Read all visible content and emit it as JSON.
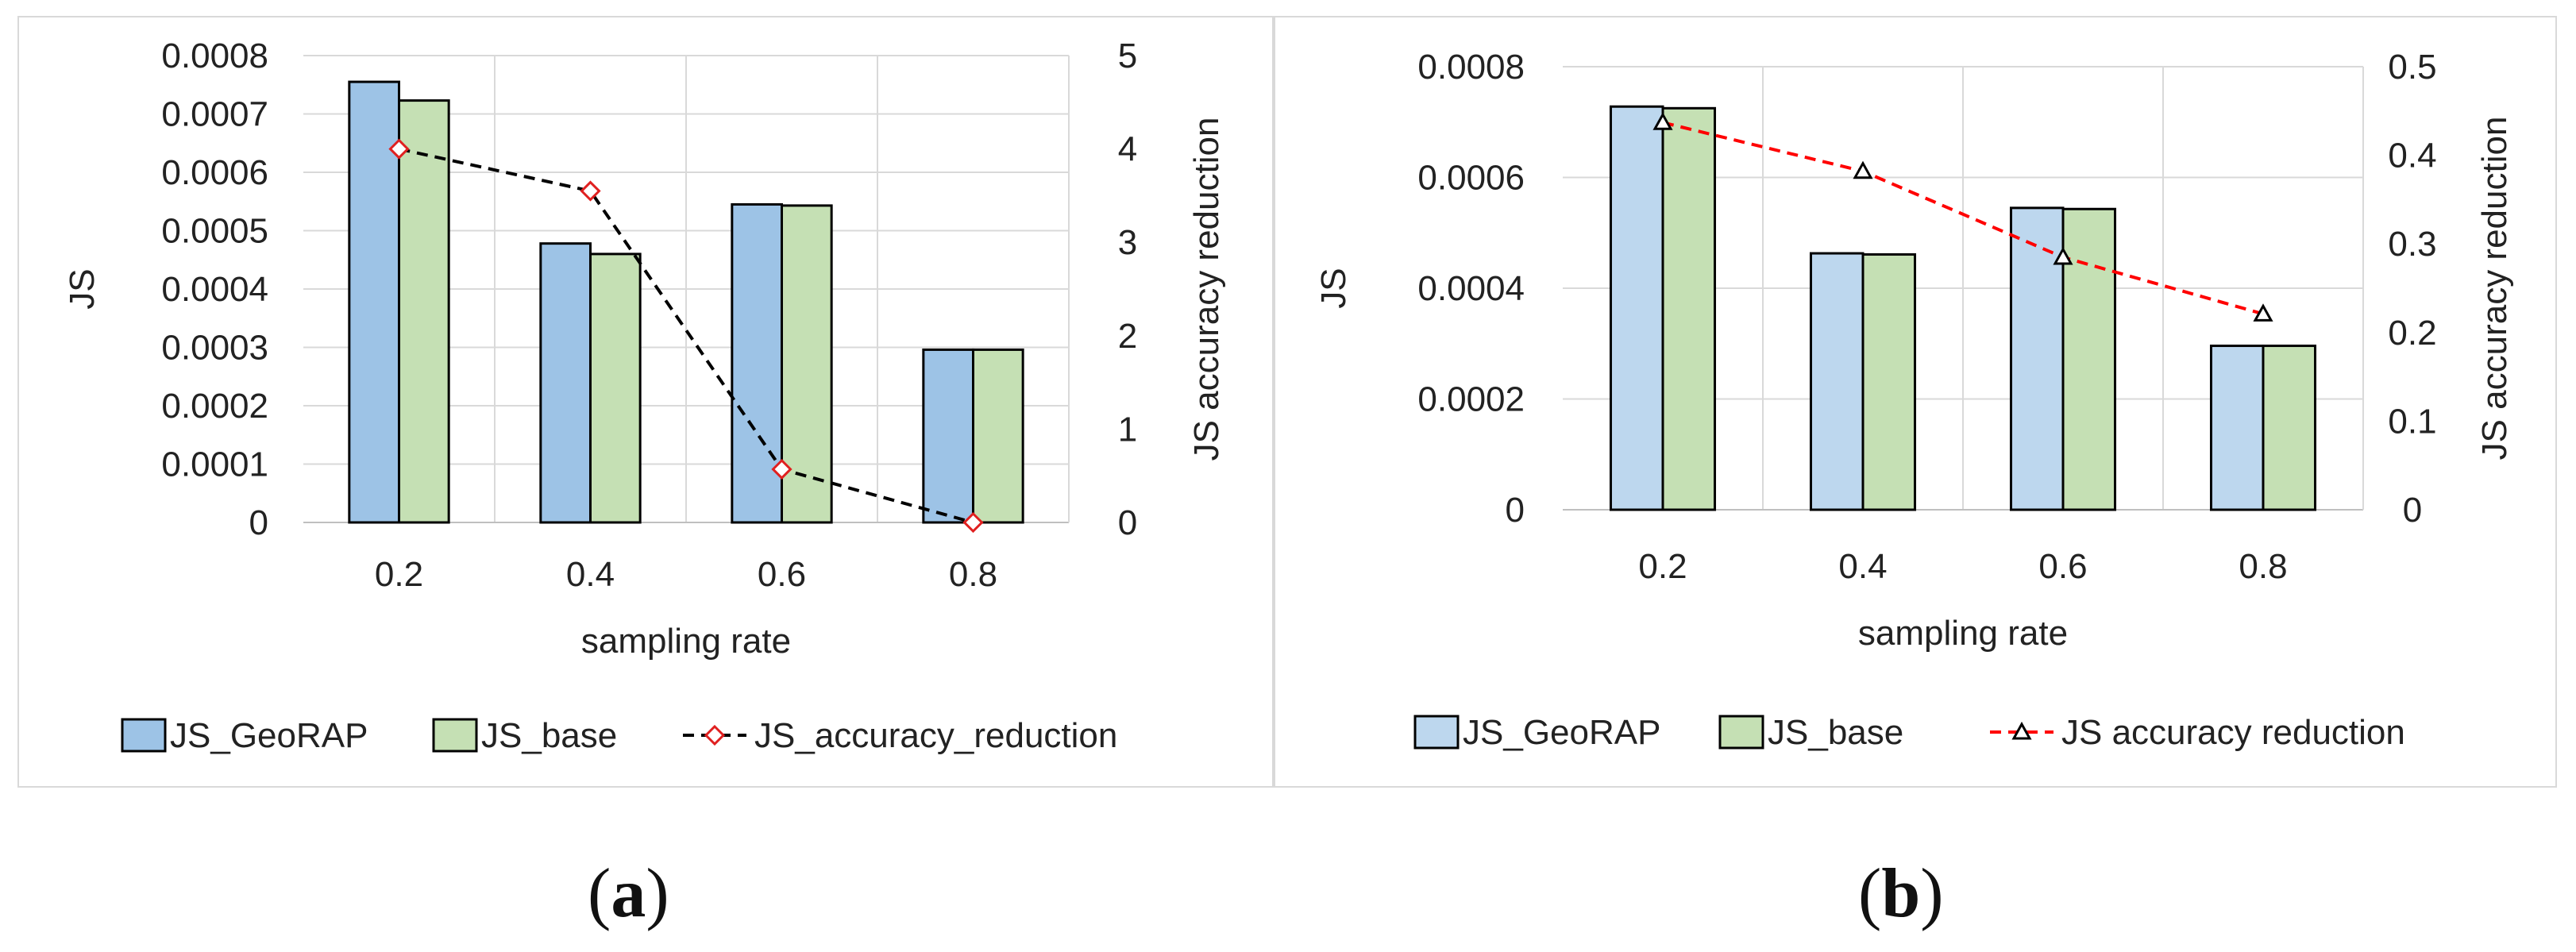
{
  "captions": [
    {
      "open": "(",
      "letter": "a",
      "close": ")"
    },
    {
      "open": "(",
      "letter": "b",
      "close": ")"
    }
  ],
  "chart_data": [
    {
      "type": "bar",
      "categories": [
        "0.2",
        "0.4",
        "0.6",
        "0.8"
      ],
      "series": [
        {
          "name": "JS_GeoRAP",
          "kind": "bar",
          "axis": "left",
          "values": [
            0.000755,
            0.000478,
            0.000545,
            0.000296
          ],
          "fill": "#9dc3e6"
        },
        {
          "name": "JS_base",
          "kind": "bar",
          "axis": "left",
          "values": [
            0.000723,
            0.00046,
            0.000543,
            0.000296
          ],
          "fill": "#c5e0b4"
        },
        {
          "name": "JS_accuracy_reduction",
          "kind": "line",
          "axis": "right",
          "values": [
            4.0,
            3.55,
            0.57,
            0.0
          ],
          "line_color": "#000000",
          "marker": "diamond",
          "marker_color": "#e02020"
        }
      ],
      "xlabel": "sampling rate",
      "ylabel": "JS",
      "y2label": "JS accuracy reduction",
      "ylim": [
        0,
        0.0008
      ],
      "y2lim": [
        0,
        5
      ],
      "yticks": [
        "0",
        "0.0001",
        "0.0002",
        "0.0003",
        "0.0004",
        "0.0005",
        "0.0006",
        "0.0007",
        "0.0008"
      ],
      "y2ticks": [
        "0",
        "1",
        "2",
        "3",
        "4",
        "5"
      ],
      "grid": true,
      "legend": "bottom"
    },
    {
      "type": "bar",
      "categories": [
        "0.2",
        "0.4",
        "0.6",
        "0.8"
      ],
      "series": [
        {
          "name": "JS_GeoRAP",
          "kind": "bar",
          "axis": "left",
          "values": [
            0.000728,
            0.000463,
            0.000545,
            0.000296
          ],
          "fill": "#bdd7ee"
        },
        {
          "name": "JS_base",
          "kind": "bar",
          "axis": "left",
          "values": [
            0.000725,
            0.000461,
            0.000543,
            0.000296
          ],
          "fill": "#c5e0b4"
        },
        {
          "name": "JS accuracy reduction",
          "kind": "line",
          "axis": "right",
          "values": [
            0.437,
            0.382,
            0.285,
            0.221
          ],
          "line_color": "#ff0000",
          "marker": "triangle",
          "marker_color": "#000000"
        }
      ],
      "xlabel": "sampling rate",
      "ylabel": "JS",
      "y2label": "JS accuracy reduction",
      "ylim": [
        0,
        0.0008
      ],
      "y2lim": [
        0,
        0.5
      ],
      "yticks": [
        "0",
        "0.0002",
        "0.0004",
        "0.0006",
        "0.0008"
      ],
      "y2ticks": [
        "0",
        "0.1",
        "0.2",
        "0.3",
        "0.4",
        "0.5"
      ],
      "grid": true,
      "legend": "bottom"
    }
  ]
}
